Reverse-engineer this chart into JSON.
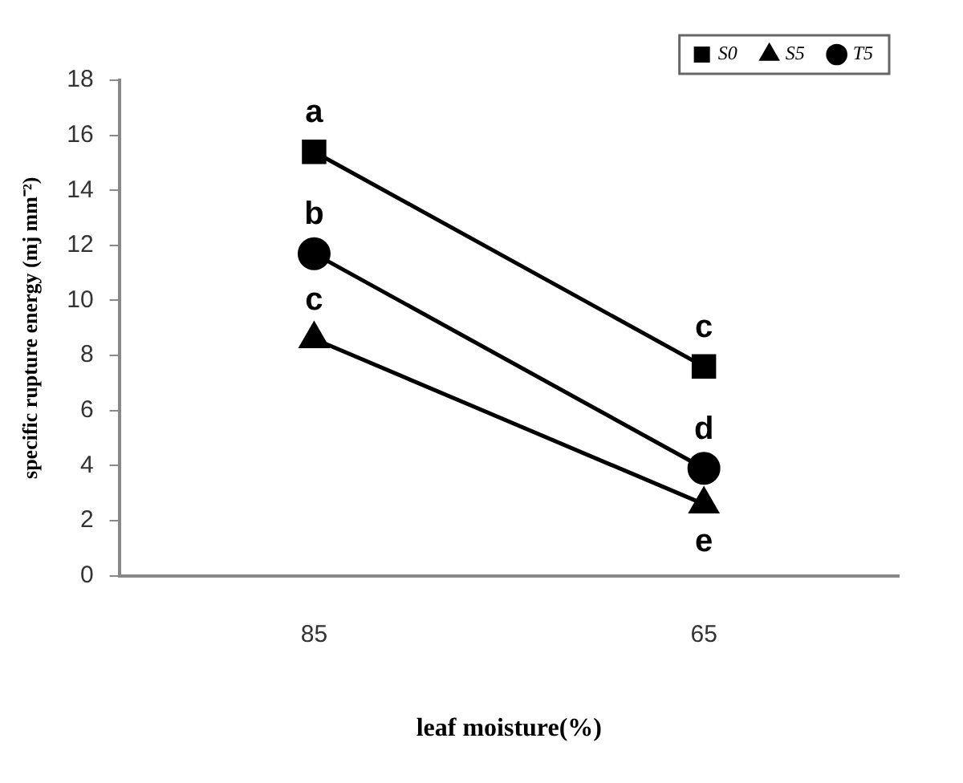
{
  "chart_data": {
    "type": "line",
    "xlabel": "leaf moisture(%)",
    "ylabel": "specific rupture energy (mj mm⁻²)",
    "categories": [
      "85",
      "65"
    ],
    "series": [
      {
        "name": "S0",
        "color": "#000000",
        "marker": "square",
        "values": [
          15.4,
          7.6
        ]
      },
      {
        "name": "S5",
        "color": "#000000",
        "marker": "triangle",
        "values": [
          8.6,
          2.6
        ]
      },
      {
        "name": "T5",
        "color": "#000000",
        "marker": "circle",
        "values": [
          11.7,
          3.9
        ]
      }
    ],
    "ylim": [
      0,
      18
    ],
    "yticks": [
      0,
      2,
      4,
      6,
      8,
      10,
      12,
      14,
      16,
      18
    ],
    "grid": false,
    "legend": "top right",
    "line_style": "solid",
    "annotations": [
      {
        "text": "a",
        "x": "85",
        "y": 15.4
      },
      {
        "text": "c",
        "x": "65",
        "y": 7.6
      },
      {
        "text": "c",
        "x": "85",
        "y": 8.6
      },
      {
        "text": "e",
        "x": "65",
        "y": 2.6
      },
      {
        "text": "b",
        "x": "85",
        "y": 11.7
      },
      {
        "text": "d",
        "x": "65",
        "y": 3.9
      }
    ]
  }
}
